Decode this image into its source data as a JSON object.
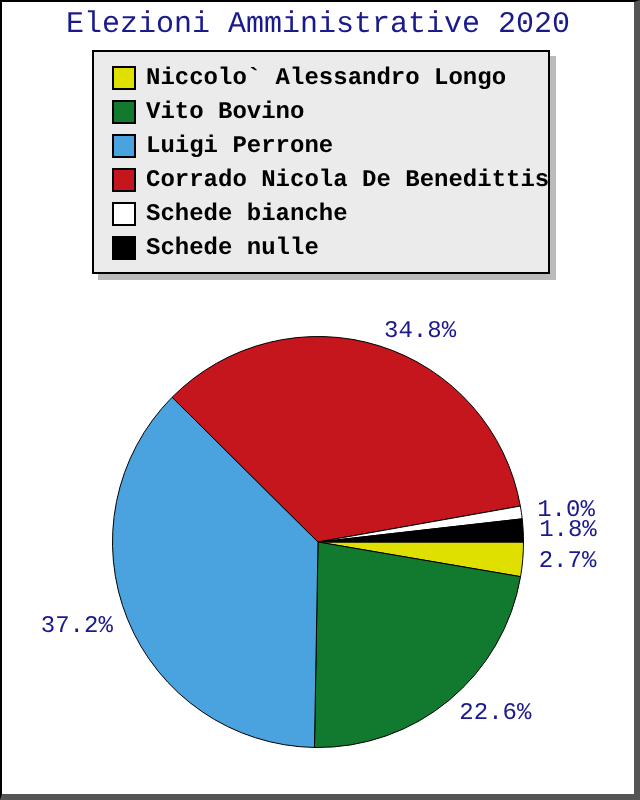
{
  "chart_data": {
    "type": "pie",
    "title": "Elezioni Amministrative 2020",
    "categories": [
      "Niccolo` Alessandro Longo",
      "Vito Bovino",
      "Luigi Perrone",
      "Corrado Nicola De Benedittis",
      "Schede bianche",
      "Schede nulle"
    ],
    "values": [
      2.7,
      22.6,
      37.2,
      34.8,
      1.0,
      1.8
    ],
    "colors": [
      "#e0e000",
      "#117a2e",
      "#4aa3df",
      "#c4161c",
      "#ffffff",
      "#000000"
    ],
    "value_labels": [
      "2.7%",
      "22.6%",
      "37.2%",
      "34.8%",
      "1.0%",
      "1.8%"
    ],
    "legend": "top"
  }
}
